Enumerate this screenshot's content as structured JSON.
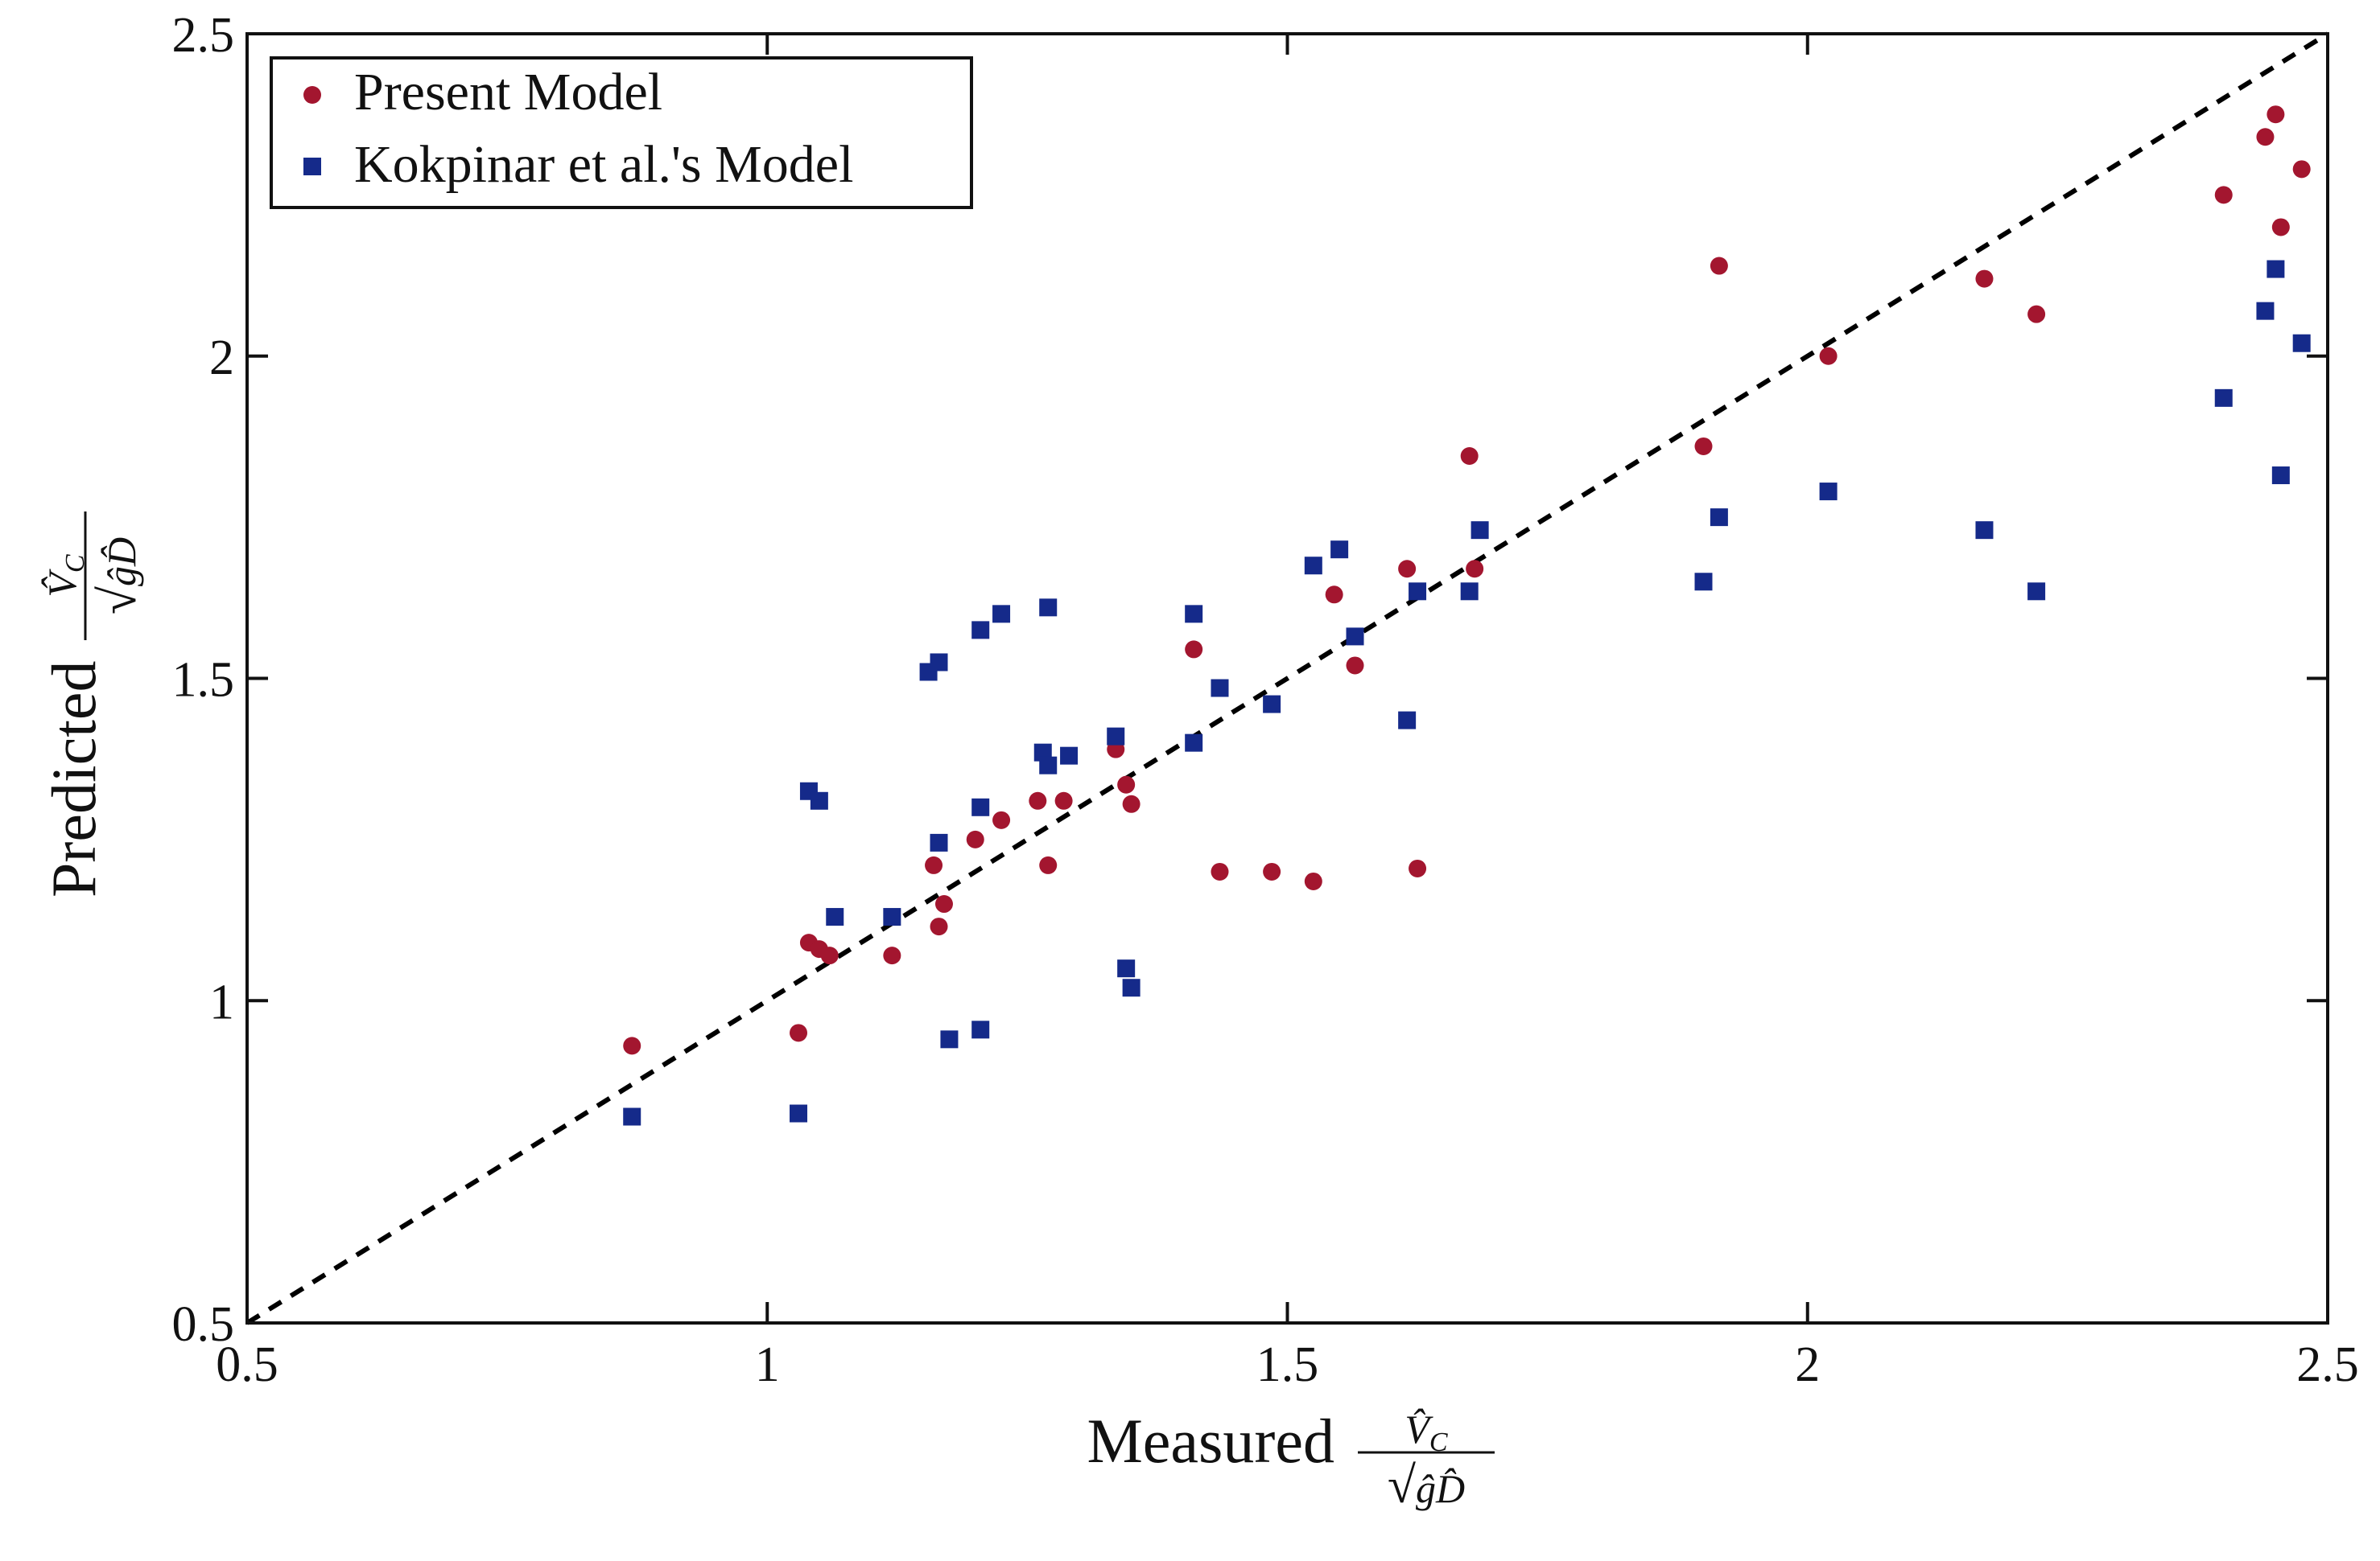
{
  "chart_data": {
    "type": "scatter",
    "title": "",
    "xlabel": "Measured",
    "ylabel": "Predicted",
    "label_fraction": {
      "numerator": "V̂",
      "numerator_sub": "C",
      "radical": "√",
      "denominator": "ĝD̂"
    },
    "xlim": [
      0.5,
      2.5
    ],
    "ylim": [
      0.5,
      2.5
    ],
    "x_ticks": [
      0.5,
      1,
      1.5,
      2,
      2.5
    ],
    "y_ticks": [
      0.5,
      1,
      1.5,
      2,
      2.5
    ],
    "x_tick_labels": [
      "0.5",
      "1",
      "1.5",
      "2",
      "2.5"
    ],
    "y_tick_labels": [
      "0.5",
      "1",
      "1.5",
      "2",
      "2.5"
    ],
    "grid": false,
    "legend_position": "top-left",
    "reference_line": {
      "name": "y = x",
      "from": [
        0.5,
        0.5
      ],
      "to": [
        2.5,
        2.5
      ],
      "color": "#000000",
      "style": "dashed"
    },
    "series": [
      {
        "name": "Present Model",
        "marker": "circle",
        "color": "#A3162F",
        "points": [
          [
            0.87,
            0.93
          ],
          [
            1.03,
            0.95
          ],
          [
            1.04,
            1.09
          ],
          [
            1.05,
            1.08
          ],
          [
            1.06,
            1.07
          ],
          [
            1.12,
            1.07
          ],
          [
            1.16,
            1.21
          ],
          [
            1.165,
            1.115
          ],
          [
            1.17,
            1.15
          ],
          [
            1.2,
            1.25
          ],
          [
            1.225,
            1.28
          ],
          [
            1.26,
            1.31
          ],
          [
            1.27,
            1.21
          ],
          [
            1.285,
            1.31
          ],
          [
            1.335,
            1.39
          ],
          [
            1.345,
            1.335
          ],
          [
            1.35,
            1.305
          ],
          [
            1.41,
            1.545
          ],
          [
            1.435,
            1.2
          ],
          [
            1.485,
            1.2
          ],
          [
            1.525,
            1.185
          ],
          [
            1.545,
            1.63
          ],
          [
            1.565,
            1.52
          ],
          [
            1.615,
            1.67
          ],
          [
            1.625,
            1.205
          ],
          [
            1.675,
            1.845
          ],
          [
            1.68,
            1.67
          ],
          [
            1.9,
            1.86
          ],
          [
            1.915,
            2.14
          ],
          [
            2.02,
            2.0
          ],
          [
            2.17,
            2.12
          ],
          [
            2.22,
            2.065
          ],
          [
            2.4,
            2.25
          ],
          [
            2.44,
            2.34
          ],
          [
            2.45,
            2.375
          ],
          [
            2.455,
            2.2
          ],
          [
            2.475,
            2.29
          ]
        ]
      },
      {
        "name": "Kokpinar et al.'s Model",
        "marker": "square",
        "color": "#152A8A",
        "points": [
          [
            0.87,
            0.82
          ],
          [
            1.03,
            0.825
          ],
          [
            1.04,
            1.325
          ],
          [
            1.05,
            1.31
          ],
          [
            1.065,
            1.13
          ],
          [
            1.12,
            1.13
          ],
          [
            1.155,
            1.51
          ],
          [
            1.165,
            1.525
          ],
          [
            1.165,
            1.245
          ],
          [
            1.175,
            0.94
          ],
          [
            1.205,
            0.955
          ],
          [
            1.205,
            1.575
          ],
          [
            1.205,
            1.3
          ],
          [
            1.225,
            1.6
          ],
          [
            1.265,
            1.385
          ],
          [
            1.27,
            1.365
          ],
          [
            1.27,
            1.61
          ],
          [
            1.29,
            1.38
          ],
          [
            1.335,
            1.41
          ],
          [
            1.345,
            1.05
          ],
          [
            1.35,
            1.02
          ],
          [
            1.41,
            1.6
          ],
          [
            1.41,
            1.4
          ],
          [
            1.435,
            1.485
          ],
          [
            1.485,
            1.46
          ],
          [
            1.525,
            1.675
          ],
          [
            1.55,
            1.7
          ],
          [
            1.565,
            1.565
          ],
          [
            1.615,
            1.435
          ],
          [
            1.625,
            1.635
          ],
          [
            1.675,
            1.635
          ],
          [
            1.685,
            1.73
          ],
          [
            1.9,
            1.65
          ],
          [
            1.915,
            1.75
          ],
          [
            2.02,
            1.79
          ],
          [
            2.17,
            1.73
          ],
          [
            2.22,
            1.635
          ],
          [
            2.4,
            1.935
          ],
          [
            2.44,
            2.07
          ],
          [
            2.45,
            2.135
          ],
          [
            2.455,
            1.815
          ],
          [
            2.475,
            2.02
          ]
        ]
      }
    ]
  }
}
